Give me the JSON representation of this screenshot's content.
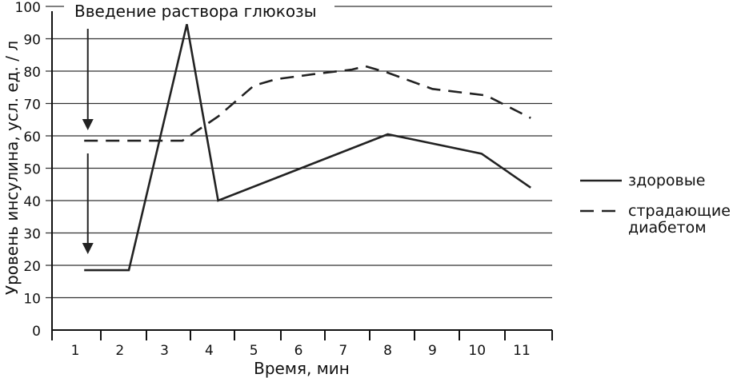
{
  "chart_data": {
    "type": "line",
    "title": "",
    "xlabel": "Время, мин",
    "ylabel": "Уровень инсулина, усл. ед. / л",
    "x": [
      1,
      2,
      3,
      4,
      5,
      6,
      7,
      8,
      9,
      10,
      11
    ],
    "x_tick_labels": [
      "1",
      "2",
      "3",
      "4",
      "5",
      "6",
      "7",
      "8",
      "9",
      "10",
      "11"
    ],
    "y_tick_labels": [
      "0",
      "10",
      "20",
      "30",
      "40",
      "50",
      "60",
      "70",
      "80",
      "90",
      "100"
    ],
    "xlim": [
      0.5,
      11.8
    ],
    "ylim": [
      0,
      100
    ],
    "grid": "horizontal",
    "legend_placement": "right",
    "annotation": {
      "text": "Введение раствора глюкозы",
      "arrows_at_x": [
        1.3,
        1.3
      ]
    },
    "series": [
      {
        "name": "здоровые",
        "style": "solid",
        "color": "#222222",
        "points": [
          [
            1.2,
            18.5
          ],
          [
            2.2,
            18.5
          ],
          [
            3.5,
            94.5
          ],
          [
            4.2,
            40
          ],
          [
            8.0,
            60.5
          ],
          [
            10.1,
            54.5
          ],
          [
            11.2,
            44
          ]
        ]
      },
      {
        "name": "страдающие диабетом",
        "style": "dashed",
        "color": "#222222",
        "points": [
          [
            1.2,
            58.5
          ],
          [
            3.4,
            58.5
          ],
          [
            4.2,
            66
          ],
          [
            5.0,
            75.5
          ],
          [
            5.5,
            77.5
          ],
          [
            6.3,
            79
          ],
          [
            7.2,
            80.5
          ],
          [
            7.5,
            81.5
          ],
          [
            8.0,
            79.5
          ],
          [
            9.0,
            74.5
          ],
          [
            10.2,
            72.5
          ],
          [
            11.2,
            65.5
          ]
        ]
      }
    ]
  }
}
